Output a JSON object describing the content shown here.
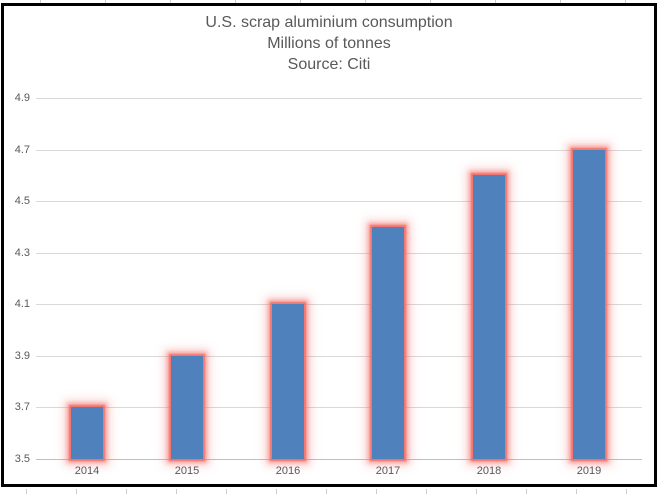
{
  "chart_data": {
    "type": "bar",
    "title": "U.S. scrap aluminium consumption",
    "subtitle": "Millions of tonnes",
    "source": "Source: Citi",
    "categories": [
      "2014",
      "2015",
      "2016",
      "2017",
      "2018",
      "2019"
    ],
    "values": [
      3.7,
      3.9,
      4.1,
      4.4,
      4.6,
      4.7
    ],
    "ylim": [
      3.5,
      4.9
    ],
    "ytick_labels": [
      "3.5",
      "3.7",
      "3.9",
      "4.1",
      "4.3",
      "4.5",
      "4.7",
      "4.9"
    ],
    "xlabel": "",
    "ylabel": "",
    "grid": true,
    "legend": "none",
    "colors": {
      "bar": "#4f81bd",
      "glow": "#f26e67",
      "gridline": "#d9d9d9",
      "axis_line": "#bfbfbf",
      "text": "#595959",
      "chart_border": "#000000"
    }
  }
}
